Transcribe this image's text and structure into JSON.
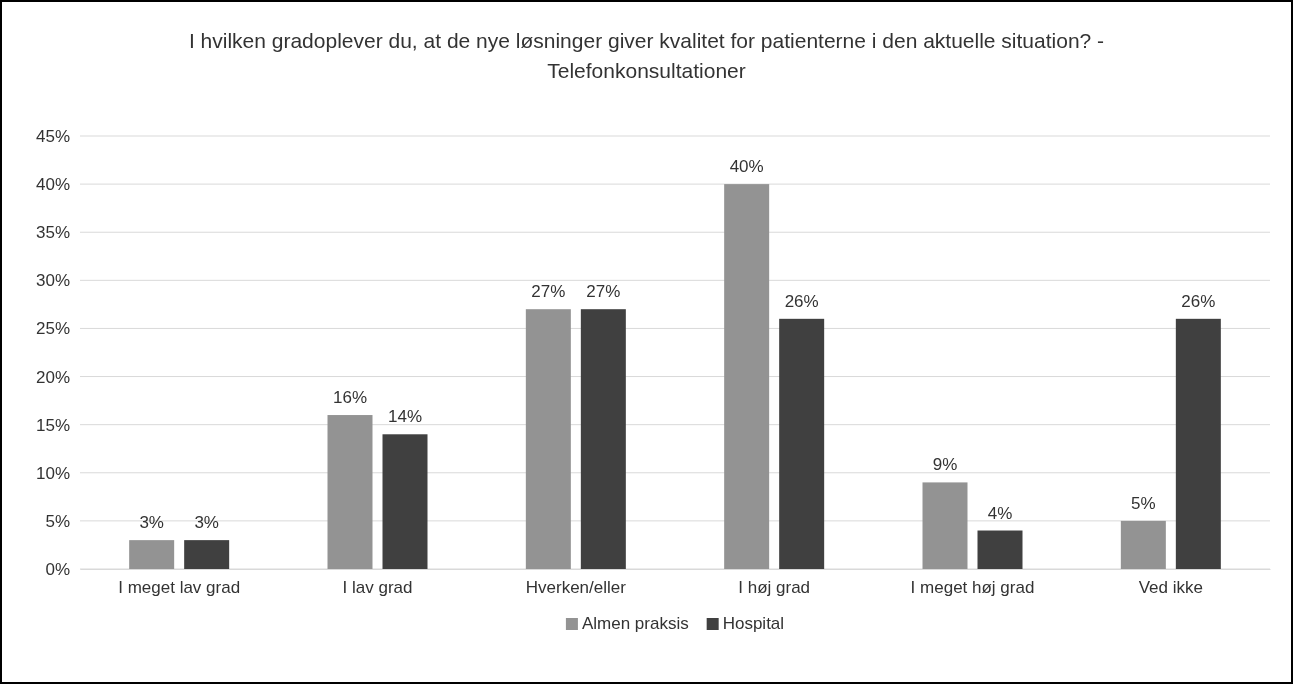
{
  "chart_data": {
    "type": "bar",
    "title": "I hvilken gradoplever du, at de nye løsninger giver kvalitet for patienterne i den aktuelle situation? - Telefonkonsultationer",
    "categories": [
      "I meget lav grad",
      "I lav grad",
      "Hverken/eller",
      "I høj grad",
      "I meget høj grad",
      "Ved ikke"
    ],
    "series": [
      {
        "name": "Almen praksis",
        "color": "#939393",
        "values": [
          3,
          16,
          27,
          40,
          9,
          5
        ],
        "value_labels": [
          "3%",
          "16%",
          "27%",
          "40%",
          "9%",
          "5%"
        ]
      },
      {
        "name": "Hospital",
        "color": "#404040",
        "values": [
          3,
          14,
          27,
          26,
          4,
          26
        ],
        "value_labels": [
          "3%",
          "14%",
          "27%",
          "26%",
          "4%",
          "26%"
        ]
      }
    ],
    "ylim": [
      0,
      45
    ],
    "yticks": [
      {
        "value": 0,
        "label": "0%"
      },
      {
        "value": 5,
        "label": "5%"
      },
      {
        "value": 10,
        "label": "10%"
      },
      {
        "value": 15,
        "label": "15%"
      },
      {
        "value": 20,
        "label": "20%"
      },
      {
        "value": 25,
        "label": "25%"
      },
      {
        "value": 30,
        "label": "30%"
      },
      {
        "value": 35,
        "label": "35%"
      },
      {
        "value": 40,
        "label": "40%"
      },
      {
        "value": 45,
        "label": "45%"
      }
    ],
    "grid": "y",
    "legend": "bottom"
  }
}
